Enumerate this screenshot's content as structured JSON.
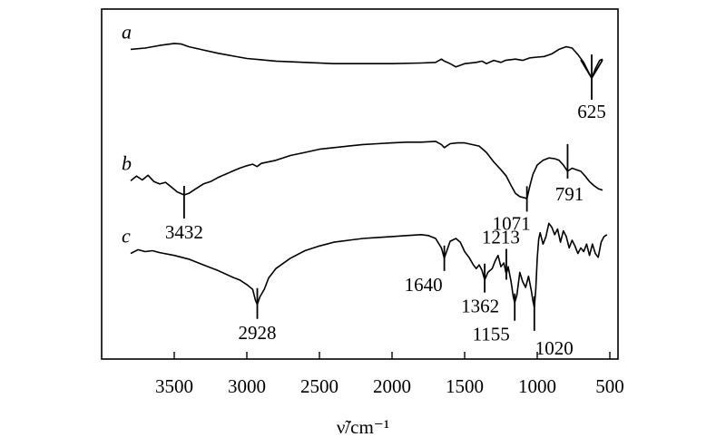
{
  "chart_data": {
    "type": "line",
    "xlabel": "ν̃/cm⁻¹",
    "x_axis": {
      "ticks": [
        3500,
        3000,
        2500,
        2000,
        1500,
        1000,
        500
      ],
      "range": [
        3850,
        450
      ],
      "reversed": true
    },
    "y_axis": {
      "shown": false
    },
    "grid": false,
    "series": [
      {
        "name": "a",
        "points": [
          [
            3800,
            0.8
          ],
          [
            3700,
            0.82
          ],
          [
            3600,
            0.86
          ],
          [
            3500,
            0.89
          ],
          [
            3450,
            0.88
          ],
          [
            3400,
            0.84
          ],
          [
            3300,
            0.79
          ],
          [
            3200,
            0.74
          ],
          [
            3100,
            0.7
          ],
          [
            3000,
            0.66
          ],
          [
            2900,
            0.64
          ],
          [
            2800,
            0.62
          ],
          [
            2600,
            0.6
          ],
          [
            2400,
            0.58
          ],
          [
            2200,
            0.58
          ],
          [
            2000,
            0.58
          ],
          [
            1800,
            0.59
          ],
          [
            1700,
            0.6
          ],
          [
            1660,
            0.65
          ],
          [
            1640,
            0.62
          ],
          [
            1600,
            0.58
          ],
          [
            1560,
            0.53
          ],
          [
            1500,
            0.58
          ],
          [
            1420,
            0.6
          ],
          [
            1380,
            0.62
          ],
          [
            1350,
            0.58
          ],
          [
            1300,
            0.63
          ],
          [
            1250,
            0.6
          ],
          [
            1220,
            0.63
          ],
          [
            1150,
            0.65
          ],
          [
            1100,
            0.63
          ],
          [
            1050,
            0.67
          ],
          [
            1000,
            0.68
          ],
          [
            950,
            0.69
          ],
          [
            900,
            0.73
          ],
          [
            850,
            0.8
          ],
          [
            800,
            0.84
          ],
          [
            760,
            0.82
          ],
          [
            720,
            0.72
          ],
          [
            680,
            0.6
          ],
          [
            640,
            0.42
          ],
          [
            625,
            0.36
          ],
          [
            600,
            0.5
          ],
          [
            570,
            0.63
          ],
          [
            550,
            0.65
          ]
        ],
        "peaks": [
          625
        ]
      },
      {
        "name": "b",
        "points": [
          [
            3800,
            0.26
          ],
          [
            3760,
            0.32
          ],
          [
            3720,
            0.27
          ],
          [
            3680,
            0.33
          ],
          [
            3640,
            0.25
          ],
          [
            3600,
            0.22
          ],
          [
            3560,
            0.24
          ],
          [
            3520,
            0.18
          ],
          [
            3480,
            0.12
          ],
          [
            3432,
            0.08
          ],
          [
            3400,
            0.1
          ],
          [
            3350,
            0.16
          ],
          [
            3300,
            0.22
          ],
          [
            3250,
            0.25
          ],
          [
            3200,
            0.3
          ],
          [
            3150,
            0.34
          ],
          [
            3100,
            0.38
          ],
          [
            3050,
            0.42
          ],
          [
            3000,
            0.45
          ],
          [
            2960,
            0.47
          ],
          [
            2930,
            0.44
          ],
          [
            2900,
            0.48
          ],
          [
            2800,
            0.52
          ],
          [
            2700,
            0.58
          ],
          [
            2600,
            0.62
          ],
          [
            2500,
            0.66
          ],
          [
            2400,
            0.68
          ],
          [
            2300,
            0.7
          ],
          [
            2200,
            0.72
          ],
          [
            2100,
            0.73
          ],
          [
            2000,
            0.74
          ],
          [
            1900,
            0.75
          ],
          [
            1800,
            0.75
          ],
          [
            1700,
            0.76
          ],
          [
            1660,
            0.72
          ],
          [
            1640,
            0.68
          ],
          [
            1600,
            0.73
          ],
          [
            1550,
            0.74
          ],
          [
            1500,
            0.74
          ],
          [
            1450,
            0.72
          ],
          [
            1400,
            0.7
          ],
          [
            1350,
            0.62
          ],
          [
            1300,
            0.5
          ],
          [
            1250,
            0.4
          ],
          [
            1213,
            0.32
          ],
          [
            1180,
            0.2
          ],
          [
            1150,
            0.1
          ],
          [
            1120,
            0.06
          ],
          [
            1100,
            0.05
          ],
          [
            1080,
            0.04
          ],
          [
            1071,
            0.03
          ],
          [
            1050,
            0.2
          ],
          [
            1030,
            0.34
          ],
          [
            1000,
            0.46
          ],
          [
            960,
            0.52
          ],
          [
            920,
            0.55
          ],
          [
            880,
            0.54
          ],
          [
            850,
            0.52
          ],
          [
            820,
            0.46
          ],
          [
            791,
            0.38
          ],
          [
            760,
            0.42
          ],
          [
            730,
            0.4
          ],
          [
            700,
            0.38
          ],
          [
            670,
            0.32
          ],
          [
            640,
            0.25
          ],
          [
            610,
            0.2
          ],
          [
            580,
            0.16
          ],
          [
            550,
            0.14
          ]
        ],
        "peaks": [
          3432,
          1071,
          791
        ]
      },
      {
        "name": "c",
        "points": [
          [
            3800,
            0.6
          ],
          [
            3750,
            0.64
          ],
          [
            3700,
            0.62
          ],
          [
            3650,
            0.63
          ],
          [
            3600,
            0.61
          ],
          [
            3500,
            0.58
          ],
          [
            3400,
            0.54
          ],
          [
            3300,
            0.48
          ],
          [
            3200,
            0.42
          ],
          [
            3100,
            0.35
          ],
          [
            3050,
            0.32
          ],
          [
            3000,
            0.27
          ],
          [
            2960,
            0.22
          ],
          [
            2940,
            0.1
          ],
          [
            2928,
            0.06
          ],
          [
            2910,
            0.14
          ],
          [
            2880,
            0.22
          ],
          [
            2850,
            0.34
          ],
          [
            2800,
            0.44
          ],
          [
            2700,
            0.55
          ],
          [
            2600,
            0.63
          ],
          [
            2500,
            0.68
          ],
          [
            2400,
            0.72
          ],
          [
            2300,
            0.74
          ],
          [
            2200,
            0.76
          ],
          [
            2100,
            0.77
          ],
          [
            2000,
            0.78
          ],
          [
            1900,
            0.79
          ],
          [
            1800,
            0.8
          ],
          [
            1750,
            0.79
          ],
          [
            1700,
            0.76
          ],
          [
            1660,
            0.66
          ],
          [
            1640,
            0.55
          ],
          [
            1620,
            0.64
          ],
          [
            1600,
            0.73
          ],
          [
            1560,
            0.76
          ],
          [
            1530,
            0.72
          ],
          [
            1500,
            0.62
          ],
          [
            1470,
            0.56
          ],
          [
            1440,
            0.48
          ],
          [
            1420,
            0.44
          ],
          [
            1400,
            0.48
          ],
          [
            1380,
            0.42
          ],
          [
            1362,
            0.32
          ],
          [
            1340,
            0.4
          ],
          [
            1310,
            0.44
          ],
          [
            1290,
            0.52
          ],
          [
            1270,
            0.58
          ],
          [
            1250,
            0.46
          ],
          [
            1230,
            0.5
          ],
          [
            1213,
            0.38
          ],
          [
            1200,
            0.46
          ],
          [
            1180,
            0.3
          ],
          [
            1165,
            0.14
          ],
          [
            1155,
            0.08
          ],
          [
            1140,
            0.16
          ],
          [
            1120,
            0.4
          ],
          [
            1100,
            0.3
          ],
          [
            1080,
            0.24
          ],
          [
            1060,
            0.36
          ],
          [
            1040,
            0.2
          ],
          [
            1030,
            0.1
          ],
          [
            1020,
            0.03
          ],
          [
            1010,
            0.22
          ],
          [
            1000,
            0.55
          ],
          [
            990,
            0.75
          ],
          [
            980,
            0.82
          ],
          [
            960,
            0.7
          ],
          [
            940,
            0.78
          ],
          [
            920,
            0.92
          ],
          [
            900,
            0.88
          ],
          [
            880,
            0.8
          ],
          [
            860,
            0.86
          ],
          [
            840,
            0.72
          ],
          [
            820,
            0.84
          ],
          [
            800,
            0.78
          ],
          [
            780,
            0.66
          ],
          [
            760,
            0.74
          ],
          [
            740,
            0.68
          ],
          [
            720,
            0.6
          ],
          [
            700,
            0.66
          ],
          [
            680,
            0.62
          ],
          [
            660,
            0.7
          ],
          [
            640,
            0.58
          ],
          [
            620,
            0.7
          ],
          [
            600,
            0.6
          ],
          [
            580,
            0.56
          ],
          [
            560,
            0.72
          ],
          [
            540,
            0.78
          ],
          [
            520,
            0.8
          ]
        ],
        "peaks": [
          2928,
          1640,
          1362,
          1213,
          1155,
          1020
        ]
      }
    ],
    "peak_labels": [
      {
        "series": "a",
        "wavenumber": 625,
        "label": "625"
      },
      {
        "series": "b",
        "wavenumber": 3432,
        "label": "3432"
      },
      {
        "series": "b",
        "wavenumber": 1071,
        "label": "1071"
      },
      {
        "series": "b",
        "wavenumber": 791,
        "label": "791"
      },
      {
        "series": "c",
        "wavenumber": 1213,
        "label": "1213"
      },
      {
        "series": "c",
        "wavenumber": 1640,
        "label": "1640"
      },
      {
        "series": "c",
        "wavenumber": 2928,
        "label": "2928"
      },
      {
        "series": "c",
        "wavenumber": 1362,
        "label": "1362"
      },
      {
        "series": "c",
        "wavenumber": 1155,
        "label": "1155"
      },
      {
        "series": "c",
        "wavenumber": 1020,
        "label": "1020"
      }
    ]
  }
}
